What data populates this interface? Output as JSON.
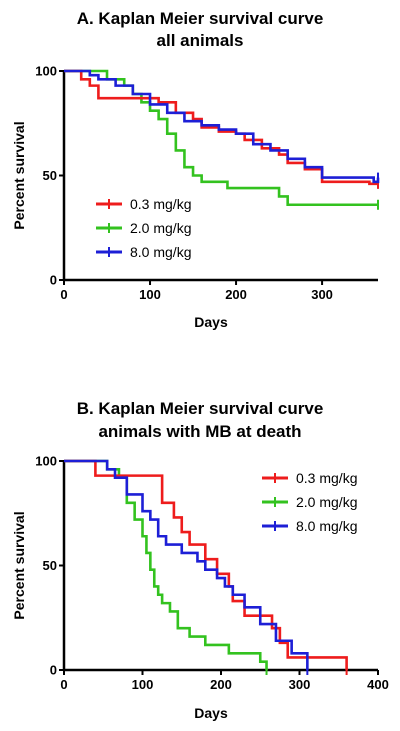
{
  "colors": {
    "0.3": "#ee1c1c",
    "2.0": "#33c21f",
    "8.0": "#1d1fd6",
    "axis": "#000000"
  },
  "chart_data": [
    {
      "type": "line",
      "step": true,
      "title": [
        "A. Kaplan Meier survival curve",
        "all animals"
      ],
      "xlabel": "Days",
      "ylabel": "Percent survival",
      "xlim": [
        0,
        365
      ],
      "ylim": [
        0,
        100
      ],
      "xticks": [
        0,
        100,
        200,
        300
      ],
      "yticks": [
        0,
        50,
        100
      ],
      "legend_position": "lower-left",
      "series": [
        {
          "name": "0.3 mg/kg",
          "color": "#ee1c1c",
          "x": [
            0,
            20,
            30,
            40,
            110,
            130,
            150,
            160,
            180,
            200,
            210,
            230,
            250,
            260,
            280,
            300,
            355,
            365
          ],
          "y": [
            100,
            96,
            93,
            87,
            85,
            80,
            77,
            73,
            71,
            70,
            67,
            63,
            60,
            56,
            53,
            47,
            46,
            46
          ]
        },
        {
          "name": "2.0 mg/kg",
          "color": "#33c21f",
          "x": [
            0,
            50,
            70,
            80,
            90,
            100,
            110,
            120,
            130,
            140,
            150,
            160,
            190,
            250,
            260,
            365
          ],
          "y": [
            100,
            96,
            93,
            89,
            85,
            81,
            77,
            70,
            62,
            54,
            50,
            47,
            44,
            40,
            36,
            36
          ]
        },
        {
          "name": "8.0 mg/kg",
          "color": "#1d1fd6",
          "x": [
            0,
            30,
            40,
            60,
            80,
            100,
            120,
            140,
            160,
            180,
            200,
            220,
            240,
            260,
            280,
            300,
            360,
            365
          ],
          "y": [
            100,
            98,
            96,
            93,
            89,
            84,
            80,
            76,
            74,
            72,
            70,
            65,
            62,
            58,
            54,
            49,
            47,
            49
          ]
        }
      ]
    },
    {
      "type": "line",
      "step": true,
      "title": [
        "B. Kaplan Meier survival curve",
        "animals with MB at death"
      ],
      "xlabel": "Days",
      "ylabel": "Percent survival",
      "xlim": [
        0,
        400
      ],
      "ylim": [
        0,
        100
      ],
      "xticks": [
        0,
        100,
        200,
        300,
        400
      ],
      "yticks": [
        0,
        50,
        100
      ],
      "legend_position": "top-right",
      "series": [
        {
          "name": "0.3 mg/kg",
          "color": "#ee1c1c",
          "x": [
            0,
            40,
            55,
            125,
            140,
            150,
            160,
            175,
            180,
            195,
            210,
            215,
            220,
            230,
            250,
            265,
            275,
            285,
            360
          ],
          "y": [
            100,
            93,
            93,
            80,
            73,
            66,
            60,
            60,
            53,
            46,
            40,
            33,
            33,
            26,
            26,
            20,
            13,
            6,
            0
          ]
        },
        {
          "name": "2.0 mg/kg",
          "color": "#33c21f",
          "x": [
            0,
            55,
            70,
            80,
            90,
            100,
            105,
            110,
            115,
            120,
            125,
            135,
            145,
            160,
            180,
            210,
            250,
            258
          ],
          "y": [
            100,
            96,
            92,
            80,
            72,
            64,
            56,
            48,
            40,
            36,
            32,
            28,
            20,
            16,
            12,
            8,
            4,
            0
          ]
        },
        {
          "name": "8.0 mg/kg",
          "color": "#1d1fd6",
          "x": [
            0,
            55,
            65,
            80,
            100,
            110,
            120,
            130,
            150,
            170,
            180,
            195,
            205,
            215,
            230,
            250,
            270,
            290,
            310
          ],
          "y": [
            100,
            96,
            92,
            84,
            76,
            72,
            64,
            60,
            56,
            52,
            48,
            44,
            40,
            36,
            30,
            22,
            14,
            8,
            0
          ]
        }
      ]
    }
  ]
}
